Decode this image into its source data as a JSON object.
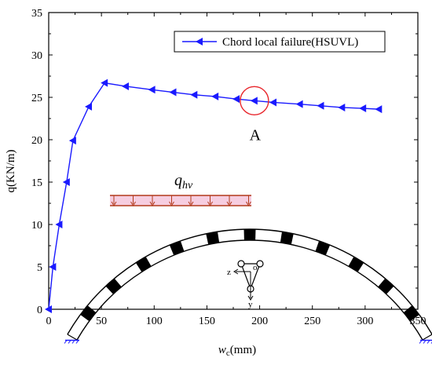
{
  "chart_data": {
    "type": "line",
    "xlabel": "w_c(mm)",
    "xlabel_main": "w",
    "xlabel_sub": "c",
    "xlabel_unit": "(mm)",
    "ylabel": "q(KN/m)",
    "xlim": [
      0,
      350
    ],
    "ylim": [
      0,
      35
    ],
    "xticks": [
      0,
      50,
      100,
      150,
      200,
      250,
      300,
      350
    ],
    "yticks": [
      0,
      5,
      10,
      15,
      20,
      25,
      30,
      35
    ],
    "grid": false,
    "legend_position": "top-right",
    "series": [
      {
        "name": "Chord local failure(HSUVL)",
        "color": "#1a1aff",
        "marker": "left-triangle",
        "x": [
          0,
          4,
          10,
          17,
          23,
          38,
          53,
          73,
          98,
          118,
          138,
          158,
          178,
          195,
          213,
          238,
          258,
          278,
          298,
          313
        ],
        "y": [
          0,
          5,
          10,
          15,
          19.9,
          23.9,
          26.7,
          26.3,
          25.9,
          25.6,
          25.3,
          25.1,
          24.8,
          24.6,
          24.4,
          24.2,
          24.0,
          23.8,
          23.7,
          23.6
        ]
      }
    ],
    "annotations": [
      {
        "label": "A",
        "x": 195,
        "y": 24.6,
        "shape": "circle",
        "color": "#e8252b"
      }
    ],
    "inset": {
      "load_symbol": "q",
      "load_subscript": "hv",
      "load_color": "#b23a1a",
      "load_fill": "#f6cde0",
      "arch_color": "#000000",
      "section_labels": [
        "z",
        "o",
        "y"
      ]
    }
  }
}
